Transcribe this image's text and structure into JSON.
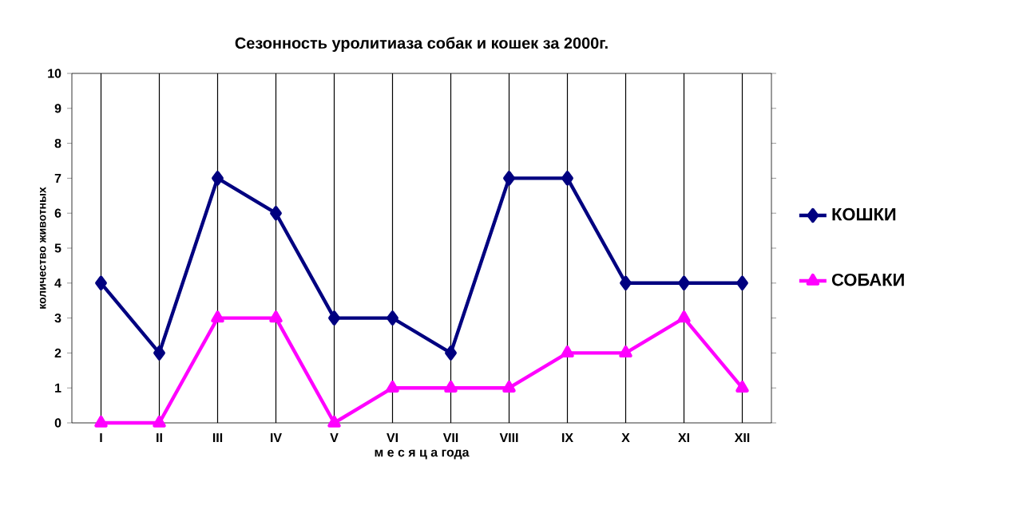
{
  "chart_data": {
    "type": "line",
    "title": "Сезонность уролитиаза собак и кошек за 2000г.",
    "xlabel": "м е с я ц а  года",
    "ylabel": "количество животных",
    "categories": [
      "I",
      "II",
      "III",
      "IV",
      "V",
      "VI",
      "VII",
      "VIII",
      "IX",
      "X",
      "XI",
      "XII"
    ],
    "series": [
      {
        "name": "КОШКИ",
        "color": "#000080",
        "marker": "diamond",
        "values": [
          4,
          2,
          7,
          6,
          3,
          3,
          2,
          7,
          7,
          4,
          4,
          4
        ]
      },
      {
        "name": "СОБАКИ",
        "color": "#ff00ff",
        "marker": "triangle",
        "values": [
          0,
          0,
          3,
          3,
          0,
          1,
          1,
          1,
          2,
          2,
          3,
          1
        ]
      }
    ],
    "ylim": [
      0,
      10
    ],
    "yticks": [
      0,
      1,
      2,
      3,
      4,
      5,
      6,
      7,
      8,
      9,
      10
    ],
    "grid": "x",
    "legend": "right",
    "line_style": "solid"
  }
}
